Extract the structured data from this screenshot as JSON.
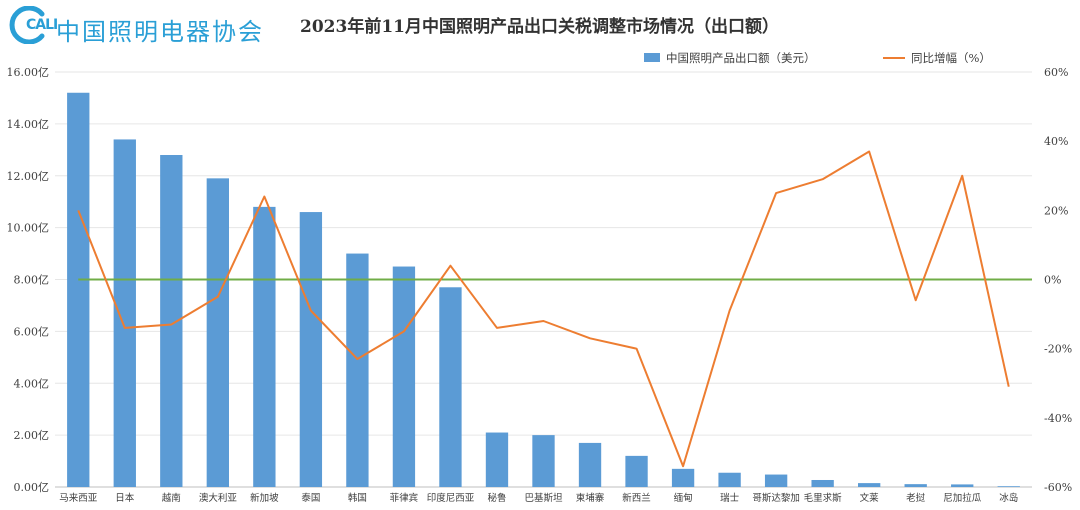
{
  "org_logo": {
    "mark_text": "CALI",
    "org_name": "中国照明电器协会"
  },
  "chart_data": {
    "type": "bar+line",
    "title": "2023年前11月中国照明产品出口关税调整市场情况（出口额）",
    "categories": [
      "马来西亚",
      "日本",
      "越南",
      "澳大利亚",
      "新加坡",
      "泰国",
      "韩国",
      "菲律宾",
      "印度尼西亚",
      "秘鲁",
      "巴基斯坦",
      "柬埔寨",
      "新西兰",
      "缅甸",
      "瑞士",
      "哥斯达黎加",
      "毛里求斯",
      "文莱",
      "老挝",
      "尼加拉瓜",
      "冰岛"
    ],
    "series": [
      {
        "name": "中国照明产品出口额（美元）",
        "type": "bar",
        "axis": "left",
        "color": "#5b9bd5",
        "values": [
          15.2,
          13.4,
          12.8,
          11.9,
          10.8,
          10.6,
          9.0,
          8.5,
          7.7,
          2.1,
          2.0,
          1.7,
          1.2,
          0.7,
          0.55,
          0.48,
          0.27,
          0.15,
          0.11,
          0.1,
          0.03
        ]
      },
      {
        "name": "同比增幅（%）",
        "type": "line",
        "axis": "right",
        "color": "#ed7d31",
        "values": [
          20,
          -14,
          -13,
          -5,
          24,
          -9,
          -23,
          -15,
          4,
          -14,
          -12,
          -17,
          -20,
          -54,
          -9,
          25,
          29,
          37,
          -6,
          30,
          -31
        ]
      }
    ],
    "zero_line_color": "#70ad47",
    "y_left": {
      "min": 0,
      "max": 16,
      "ticks": [
        "0.00亿",
        "2.00亿",
        "4.00亿",
        "6.00亿",
        "8.00亿",
        "10.00亿",
        "12.00亿",
        "14.00亿",
        "16.00亿"
      ]
    },
    "y_right": {
      "min": -60,
      "max": 60,
      "ticks": [
        "-60%",
        "-40%",
        "-20%",
        "0%",
        "20%",
        "40%",
        "60%"
      ]
    },
    "legend_position": "top-right",
    "grid": true
  }
}
